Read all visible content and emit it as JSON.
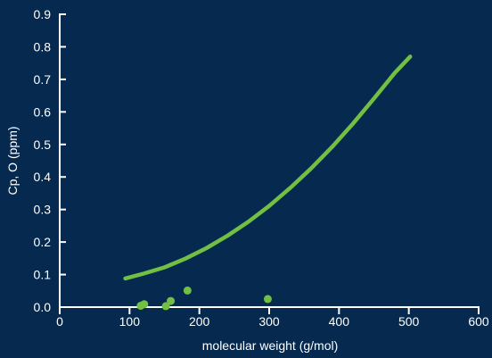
{
  "colors": {
    "background": "#05294f",
    "axis": "#ffffff",
    "text": "#ffffff",
    "series": "#72bf44"
  },
  "chart_data": {
    "type": "scatter",
    "title": "",
    "xlabel": "molecular weight (g/mol)",
    "ylabel": "Cp, O (ppm)",
    "xlim": [
      0,
      600
    ],
    "ylim": [
      0,
      0.9
    ],
    "x_ticks": [
      0,
      100,
      200,
      300,
      400,
      500,
      600
    ],
    "x_tick_labels": [
      "0",
      "100",
      "200",
      "300",
      "400",
      "500",
      "600"
    ],
    "y_ticks": [
      0.0,
      0.1,
      0.2,
      0.3,
      0.4,
      0.5,
      0.6,
      0.7,
      0.8,
      0.9
    ],
    "y_tick_labels": [
      "0.0",
      "0.1",
      "0.2",
      "0.3",
      "0.4",
      "0.5",
      "0.6",
      "0.7",
      "0.8",
      "0.9"
    ],
    "grid": false,
    "series": [
      {
        "kind": "scatter",
        "color": "#72bf44",
        "points": [
          {
            "x": 116,
            "y": 0.004
          },
          {
            "x": 121,
            "y": 0.009
          },
          {
            "x": 152,
            "y": 0.003
          },
          {
            "x": 159,
            "y": 0.019
          },
          {
            "x": 183,
            "y": 0.051
          },
          {
            "x": 298,
            "y": 0.025
          }
        ]
      },
      {
        "kind": "line",
        "color": "#72bf44",
        "points": [
          {
            "x": 94,
            "y": 0.088
          },
          {
            "x": 120,
            "y": 0.103
          },
          {
            "x": 150,
            "y": 0.122
          },
          {
            "x": 180,
            "y": 0.149
          },
          {
            "x": 210,
            "y": 0.181
          },
          {
            "x": 240,
            "y": 0.219
          },
          {
            "x": 270,
            "y": 0.262
          },
          {
            "x": 300,
            "y": 0.311
          },
          {
            "x": 330,
            "y": 0.366
          },
          {
            "x": 360,
            "y": 0.426
          },
          {
            "x": 390,
            "y": 0.492
          },
          {
            "x": 420,
            "y": 0.564
          },
          {
            "x": 450,
            "y": 0.641
          },
          {
            "x": 480,
            "y": 0.72
          },
          {
            "x": 502,
            "y": 0.77
          }
        ]
      }
    ]
  }
}
